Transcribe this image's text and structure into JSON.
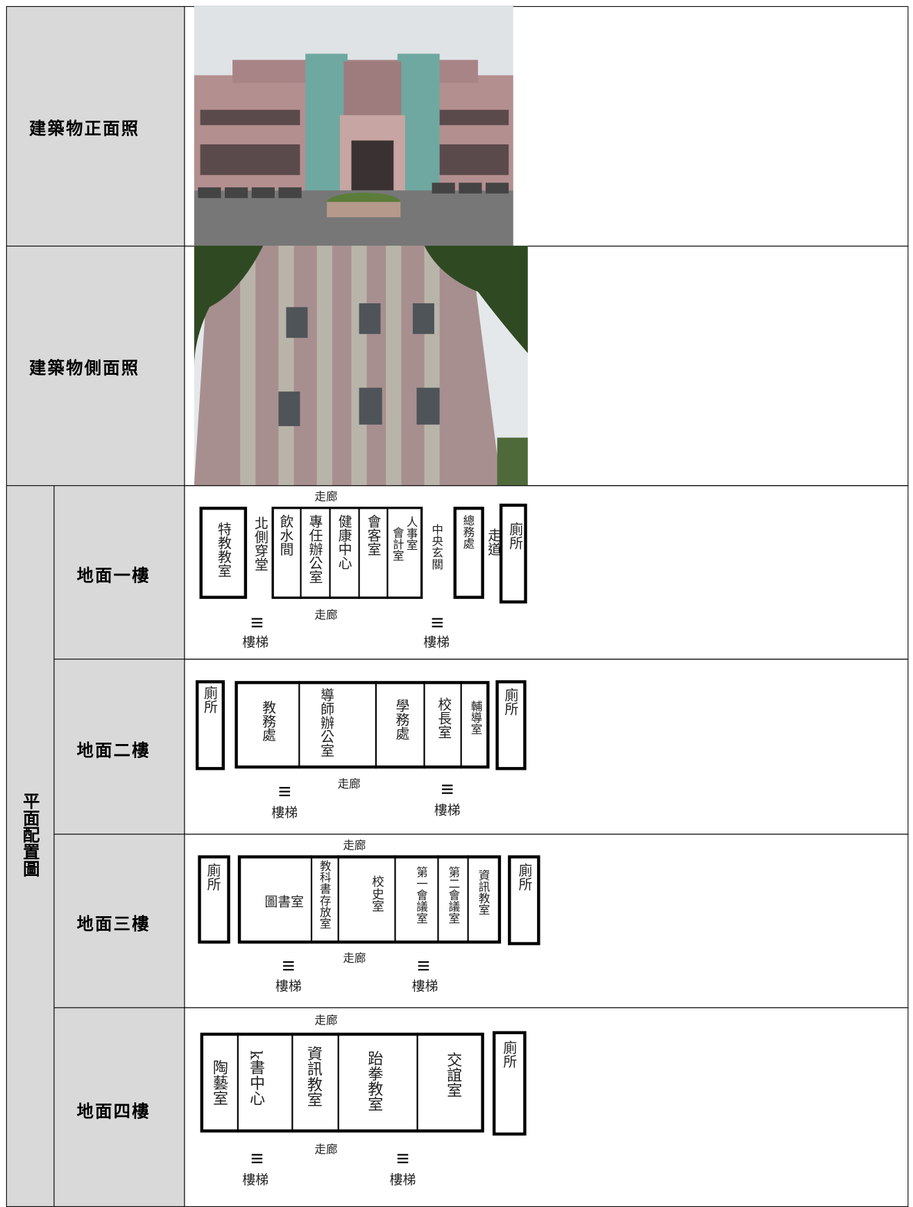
{
  "photos": [
    {
      "label": "建築物正面照"
    },
    {
      "label": "建築物側面照"
    }
  ],
  "floor_plan": {
    "label": "平面配置圖",
    "floors": [
      {
        "name": "地面一樓",
        "texts": [
          "走廊",
          "特教教室",
          "北側穿堂",
          "飲水間",
          "專任辦公室",
          "健康中心",
          "會客室",
          "會計室",
          "人事室",
          "中央玄關",
          "總務處",
          "走道",
          "廁所",
          "走廊",
          "樓梯",
          "樓梯"
        ]
      },
      {
        "name": "地面二樓",
        "texts": [
          "廁所",
          "教務處",
          "導師辦公室",
          "學務處",
          "校長室",
          "輔導室",
          "廁所",
          "走廊",
          "樓梯",
          "樓梯"
        ]
      },
      {
        "name": "地面三樓",
        "texts": [
          "走廊",
          "廁所",
          "圖書室",
          "教科書存放室",
          "校史室",
          "第一會議室",
          "第二會議室",
          "資訊教室",
          "廁所",
          "走廊",
          "樓梯",
          "樓梯"
        ]
      },
      {
        "name": "地面四樓",
        "texts": [
          "走廊",
          "陶藝室",
          "k書中心",
          "資訊教室",
          "跆拳教室",
          "交誼室",
          "廁所",
          "走廊",
          "樓梯",
          "樓梯"
        ]
      }
    ]
  }
}
